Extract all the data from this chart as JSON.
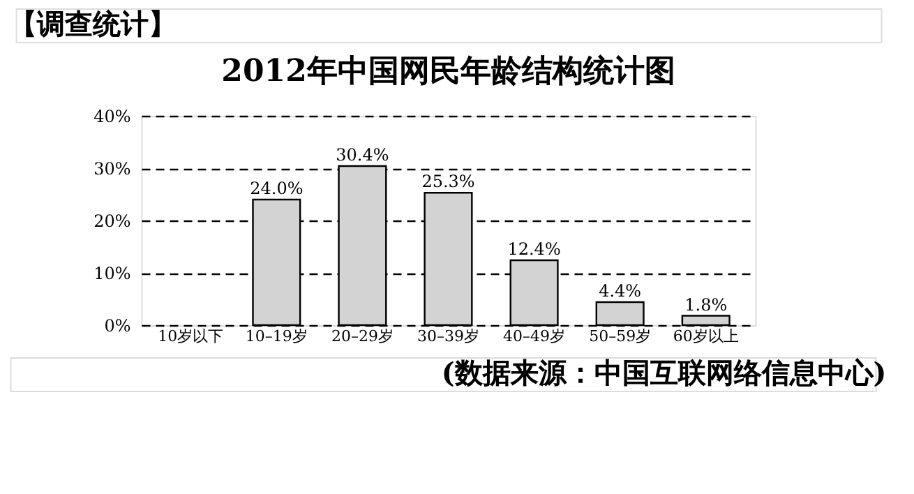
{
  "chart_data": {
    "type": "bar",
    "title": "2012年中国网民年龄结构统计图",
    "categories": [
      "10岁以下",
      "10–19岁",
      "20–29岁",
      "30–39岁",
      "40–49岁",
      "50–59岁",
      "60岁以上"
    ],
    "values": [
      null,
      24.0,
      30.4,
      25.3,
      12.4,
      4.4,
      1.8
    ],
    "value_labels": [
      null,
      "24.0%",
      "30.4%",
      "25.3%",
      "12.4%",
      "4.4%",
      "1.8%"
    ],
    "color": "#d3d3d3",
    "ylim": [
      0,
      40
    ],
    "yticks": [
      {
        "value": 0,
        "label": "0%"
      },
      {
        "value": 10,
        "label": "10%"
      },
      {
        "value": 20,
        "label": "20%"
      },
      {
        "value": 30,
        "label": "30%"
      },
      {
        "value": 40,
        "label": "40%"
      }
    ],
    "grid": "y",
    "annotations": [
      "【调查统计】",
      "(数据来源：中国互联网络信息中心)"
    ]
  }
}
